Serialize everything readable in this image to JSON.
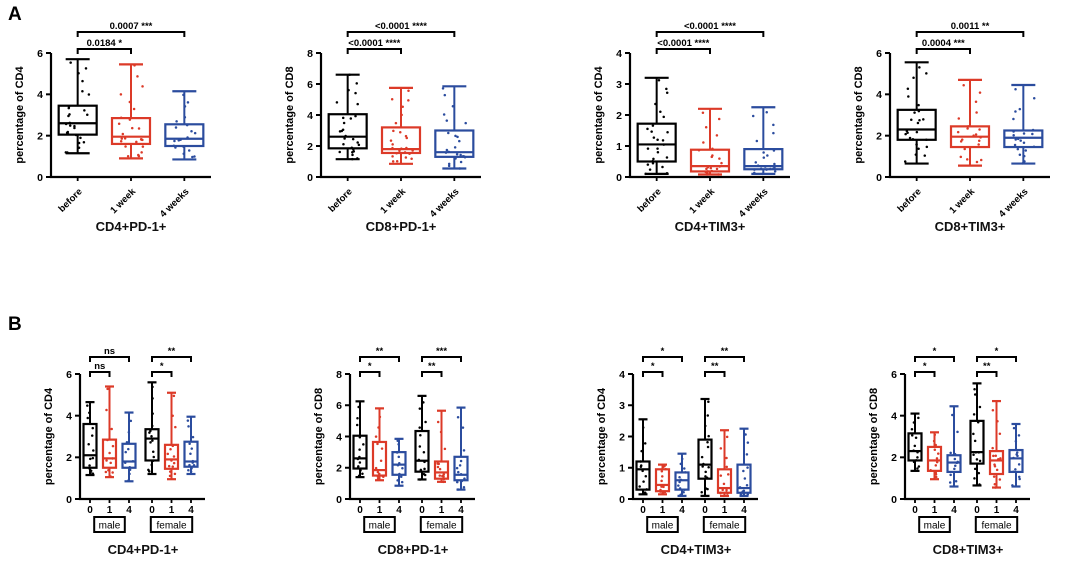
{
  "figure": {
    "sections": [
      {
        "label": "A"
      },
      {
        "label": "B"
      }
    ],
    "colors": {
      "black": "#000000",
      "red": "#DC3A28",
      "blue": "#2B4C9E",
      "background": "#ffffff"
    }
  },
  "chart_data": [
    {
      "type": "box",
      "title": "CD4+PD-1+",
      "ylabel": "percentage of CD4",
      "ylim": [
        0,
        6
      ],
      "yticks": [
        0,
        2,
        4,
        6
      ],
      "categories": [
        "before",
        "1 week",
        "4 weeks"
      ],
      "rotated_xticks": true,
      "series": [
        {
          "category": "before",
          "color": "black",
          "whisker_low": 1.15,
          "q1": 2.05,
          "median": 2.6,
          "q3": 3.45,
          "whisker_high": 5.7,
          "n_points": 27
        },
        {
          "category": "1 week",
          "color": "red",
          "whisker_low": 0.9,
          "q1": 1.6,
          "median": 1.95,
          "q3": 2.85,
          "whisker_high": 5.45,
          "n_points": 26
        },
        {
          "category": "4 weeks",
          "color": "blue",
          "whisker_low": 0.85,
          "q1": 1.5,
          "median": 1.85,
          "q3": 2.55,
          "whisker_high": 4.15,
          "n_points": 20
        }
      ],
      "significance": [
        {
          "from": 0,
          "to": 1,
          "label": "0.0184",
          "stars": "*",
          "row": 0
        },
        {
          "from": 0,
          "to": 2,
          "label": "0.0007",
          "stars": "***",
          "row": 1
        }
      ]
    },
    {
      "type": "box",
      "title": "CD8+PD-1+",
      "ylabel": "percentage of CD8",
      "ylim": [
        0,
        8
      ],
      "yticks": [
        0,
        2,
        4,
        6,
        8
      ],
      "categories": [
        "before",
        "1 week",
        "4 weeks"
      ],
      "rotated_xticks": true,
      "series": [
        {
          "category": "before",
          "color": "black",
          "whisker_low": 1.15,
          "q1": 1.85,
          "median": 2.6,
          "q3": 4.05,
          "whisker_high": 6.6,
          "n_points": 27
        },
        {
          "category": "1 week",
          "color": "red",
          "whisker_low": 0.85,
          "q1": 1.55,
          "median": 1.8,
          "q3": 3.2,
          "whisker_high": 5.75,
          "n_points": 25
        },
        {
          "category": "4 weeks",
          "color": "blue",
          "whisker_low": 0.55,
          "q1": 1.3,
          "median": 1.6,
          "q3": 3.0,
          "whisker_high": 5.85,
          "n_points": 24
        }
      ],
      "significance": [
        {
          "from": 0,
          "to": 1,
          "label": "<0.0001",
          "stars": "****",
          "row": 0
        },
        {
          "from": 0,
          "to": 2,
          "label": "<0.0001",
          "stars": "****",
          "row": 1
        }
      ]
    },
    {
      "type": "box",
      "title": "CD4+TIM3+",
      "ylabel": "percentage of CD4",
      "ylim": [
        0,
        4
      ],
      "yticks": [
        0,
        1,
        2,
        3,
        4
      ],
      "categories": [
        "before",
        "1 week",
        "4 weeks"
      ],
      "rotated_xticks": true,
      "series": [
        {
          "category": "before",
          "color": "black",
          "whisker_low": 0.1,
          "q1": 0.5,
          "median": 1.05,
          "q3": 1.72,
          "whisker_high": 3.2,
          "n_points": 26
        },
        {
          "category": "1 week",
          "color": "red",
          "whisker_low": 0.08,
          "q1": 0.18,
          "median": 0.35,
          "q3": 0.88,
          "whisker_high": 2.2,
          "n_points": 23
        },
        {
          "category": "4 weeks",
          "color": "blue",
          "whisker_low": 0.1,
          "q1": 0.25,
          "median": 0.35,
          "q3": 0.9,
          "whisker_high": 2.25,
          "n_points": 22
        }
      ],
      "significance": [
        {
          "from": 0,
          "to": 1,
          "label": "<0.0001",
          "stars": "****",
          "row": 0
        },
        {
          "from": 0,
          "to": 2,
          "label": "<0.0001",
          "stars": "****",
          "row": 1
        }
      ]
    },
    {
      "type": "box",
      "title": "CD8+TIM3+",
      "ylabel": "percentage of CD8",
      "ylim": [
        0,
        6
      ],
      "yticks": [
        0,
        2,
        4,
        6
      ],
      "categories": [
        "before",
        "1 week",
        "4 weeks"
      ],
      "rotated_xticks": true,
      "series": [
        {
          "category": "before",
          "color": "black",
          "whisker_low": 0.65,
          "q1": 1.8,
          "median": 2.3,
          "q3": 3.25,
          "whisker_high": 5.55,
          "n_points": 25
        },
        {
          "category": "1 week",
          "color": "red",
          "whisker_low": 0.55,
          "q1": 1.45,
          "median": 1.95,
          "q3": 2.45,
          "whisker_high": 4.7,
          "n_points": 22
        },
        {
          "category": "4 weeks",
          "color": "blue",
          "whisker_low": 0.65,
          "q1": 1.45,
          "median": 1.9,
          "q3": 2.25,
          "whisker_high": 4.45,
          "n_points": 22
        }
      ],
      "significance": [
        {
          "from": 0,
          "to": 1,
          "label": "0.0004",
          "stars": "***",
          "row": 0
        },
        {
          "from": 0,
          "to": 2,
          "label": "0.0011",
          "stars": "**",
          "row": 1
        }
      ]
    },
    {
      "type": "box",
      "title": "CD4+PD-1+",
      "ylabel": "percentage of CD4",
      "ylim": [
        0,
        6
      ],
      "yticks": [
        0,
        2,
        4,
        6
      ],
      "categories": [
        "0",
        "1",
        "4",
        "0",
        "1",
        "4"
      ],
      "rotated_xticks": false,
      "group_labels": [
        {
          "label": "male",
          "from": 0,
          "to": 2
        },
        {
          "label": "female",
          "from": 3,
          "to": 5
        }
      ],
      "series": [
        {
          "category": "0",
          "color": "black",
          "whisker_low": 1.15,
          "q1": 1.5,
          "median": 2.1,
          "q3": 3.6,
          "whisker_high": 4.65,
          "n_points": 14
        },
        {
          "category": "1",
          "color": "red",
          "whisker_low": 1.05,
          "q1": 1.5,
          "median": 1.95,
          "q3": 2.85,
          "whisker_high": 5.4,
          "n_points": 13
        },
        {
          "category": "4",
          "color": "blue",
          "whisker_low": 0.85,
          "q1": 1.5,
          "median": 1.8,
          "q3": 2.65,
          "whisker_high": 4.15,
          "n_points": 11
        },
        {
          "category": "0",
          "color": "black",
          "whisker_low": 1.2,
          "q1": 1.85,
          "median": 2.9,
          "q3": 3.35,
          "whisker_high": 5.6,
          "n_points": 15
        },
        {
          "category": "1",
          "color": "red",
          "whisker_low": 0.95,
          "q1": 1.45,
          "median": 1.9,
          "q3": 2.6,
          "whisker_high": 5.1,
          "n_points": 14
        },
        {
          "category": "4",
          "color": "blue",
          "whisker_low": 1.2,
          "q1": 1.55,
          "median": 1.8,
          "q3": 2.75,
          "whisker_high": 3.95,
          "n_points": 13
        }
      ],
      "significance": [
        {
          "from": 0,
          "to": 1,
          "label": "ns",
          "stars": "",
          "row": 0
        },
        {
          "from": 0,
          "to": 2,
          "label": "ns",
          "stars": "",
          "row": 1
        },
        {
          "from": 3,
          "to": 4,
          "label": "",
          "stars": "*",
          "row": 0
        },
        {
          "from": 3,
          "to": 5,
          "label": "",
          "stars": "**",
          "row": 1
        }
      ]
    },
    {
      "type": "box",
      "title": "CD8+PD-1+",
      "ylabel": "percentage of CD8",
      "ylim": [
        0,
        8
      ],
      "yticks": [
        0,
        2,
        4,
        6,
        8
      ],
      "categories": [
        "0",
        "1",
        "4",
        "0",
        "1",
        "4"
      ],
      "rotated_xticks": false,
      "group_labels": [
        {
          "label": "male",
          "from": 0,
          "to": 2
        },
        {
          "label": "female",
          "from": 3,
          "to": 5
        }
      ],
      "series": [
        {
          "category": "0",
          "color": "black",
          "whisker_low": 1.4,
          "q1": 1.95,
          "median": 2.6,
          "q3": 4.05,
          "whisker_high": 6.25,
          "n_points": 14
        },
        {
          "category": "1",
          "color": "red",
          "whisker_low": 1.2,
          "q1": 1.5,
          "median": 1.85,
          "q3": 3.65,
          "whisker_high": 5.8,
          "n_points": 13
        },
        {
          "category": "4",
          "color": "blue",
          "whisker_low": 0.85,
          "q1": 1.55,
          "median": 2.2,
          "q3": 3.0,
          "whisker_high": 3.85,
          "n_points": 12
        },
        {
          "category": "0",
          "color": "black",
          "whisker_low": 1.25,
          "q1": 1.75,
          "median": 2.45,
          "q3": 4.35,
          "whisker_high": 6.6,
          "n_points": 15
        },
        {
          "category": "1",
          "color": "red",
          "whisker_low": 1.1,
          "q1": 1.3,
          "median": 1.7,
          "q3": 2.4,
          "whisker_high": 5.65,
          "n_points": 14
        },
        {
          "category": "4",
          "color": "blue",
          "whisker_low": 0.6,
          "q1": 1.2,
          "median": 1.55,
          "q3": 2.7,
          "whisker_high": 5.85,
          "n_points": 13
        }
      ],
      "significance": [
        {
          "from": 0,
          "to": 1,
          "label": "",
          "stars": "*",
          "row": 0
        },
        {
          "from": 0,
          "to": 2,
          "label": "",
          "stars": "**",
          "row": 1
        },
        {
          "from": 3,
          "to": 4,
          "label": "",
          "stars": "**",
          "row": 0
        },
        {
          "from": 3,
          "to": 5,
          "label": "",
          "stars": "***",
          "row": 1
        }
      ]
    },
    {
      "type": "box",
      "title": "CD4+TIM3+",
      "ylabel": "percentage of CD4",
      "ylim": [
        0,
        4
      ],
      "yticks": [
        0,
        1,
        2,
        3,
        4
      ],
      "categories": [
        "0",
        "1",
        "4",
        "0",
        "1",
        "4"
      ],
      "rotated_xticks": false,
      "group_labels": [
        {
          "label": "male",
          "from": 0,
          "to": 2
        },
        {
          "label": "female",
          "from": 3,
          "to": 5
        }
      ],
      "series": [
        {
          "category": "0",
          "color": "black",
          "whisker_low": 0.15,
          "q1": 0.3,
          "median": 0.95,
          "q3": 1.2,
          "whisker_high": 2.55,
          "n_points": 13
        },
        {
          "category": "1",
          "color": "red",
          "whisker_low": 0.15,
          "q1": 0.25,
          "median": 0.45,
          "q3": 0.95,
          "whisker_high": 1.1,
          "n_points": 12
        },
        {
          "category": "4",
          "color": "blue",
          "whisker_low": 0.1,
          "q1": 0.3,
          "median": 0.6,
          "q3": 0.85,
          "whisker_high": 1.45,
          "n_points": 12
        },
        {
          "category": "0",
          "color": "black",
          "whisker_low": 0.1,
          "q1": 0.65,
          "median": 1.1,
          "q3": 1.9,
          "whisker_high": 3.2,
          "n_points": 16
        },
        {
          "category": "1",
          "color": "red",
          "whisker_low": 0.1,
          "q1": 0.2,
          "median": 0.35,
          "q3": 0.95,
          "whisker_high": 2.2,
          "n_points": 15
        },
        {
          "category": "4",
          "color": "blue",
          "whisker_low": 0.1,
          "q1": 0.2,
          "median": 0.35,
          "q3": 1.1,
          "whisker_high": 2.25,
          "n_points": 14
        }
      ],
      "significance": [
        {
          "from": 0,
          "to": 1,
          "label": "",
          "stars": "*",
          "row": 0
        },
        {
          "from": 0,
          "to": 2,
          "label": "",
          "stars": "*",
          "row": 1
        },
        {
          "from": 3,
          "to": 4,
          "label": "",
          "stars": "**",
          "row": 0
        },
        {
          "from": 3,
          "to": 5,
          "label": "",
          "stars": "**",
          "row": 1
        }
      ]
    },
    {
      "type": "box",
      "title": "CD8+TIM3+",
      "ylabel": "percentage of CD8",
      "ylim": [
        0,
        6
      ],
      "yticks": [
        0,
        2,
        4,
        6
      ],
      "categories": [
        "0",
        "1",
        "4",
        "0",
        "1",
        "4"
      ],
      "rotated_xticks": false,
      "group_labels": [
        {
          "label": "male",
          "from": 0,
          "to": 2
        },
        {
          "label": "female",
          "from": 3,
          "to": 5
        }
      ],
      "series": [
        {
          "category": "0",
          "color": "black",
          "whisker_low": 1.35,
          "q1": 1.85,
          "median": 2.3,
          "q3": 3.15,
          "whisker_high": 4.1,
          "n_points": 13
        },
        {
          "category": "1",
          "color": "red",
          "whisker_low": 0.95,
          "q1": 1.35,
          "median": 1.85,
          "q3": 2.5,
          "whisker_high": 3.2,
          "n_points": 12
        },
        {
          "category": "4",
          "color": "blue",
          "whisker_low": 0.6,
          "q1": 1.3,
          "median": 1.75,
          "q3": 2.1,
          "whisker_high": 4.45,
          "n_points": 12
        },
        {
          "category": "0",
          "color": "black",
          "whisker_low": 0.65,
          "q1": 1.7,
          "median": 2.25,
          "q3": 3.75,
          "whisker_high": 5.55,
          "n_points": 16
        },
        {
          "category": "1",
          "color": "red",
          "whisker_low": 0.55,
          "q1": 1.2,
          "median": 1.85,
          "q3": 2.3,
          "whisker_high": 4.7,
          "n_points": 15
        },
        {
          "category": "4",
          "color": "blue",
          "whisker_low": 0.6,
          "q1": 1.3,
          "median": 1.95,
          "q3": 2.35,
          "whisker_high": 3.6,
          "n_points": 14
        }
      ],
      "significance": [
        {
          "from": 0,
          "to": 1,
          "label": "",
          "stars": "*",
          "row": 0
        },
        {
          "from": 0,
          "to": 2,
          "label": "",
          "stars": "*",
          "row": 1
        },
        {
          "from": 3,
          "to": 4,
          "label": "",
          "stars": "**",
          "row": 0
        },
        {
          "from": 3,
          "to": 5,
          "label": "",
          "stars": "*",
          "row": 1
        }
      ]
    }
  ]
}
